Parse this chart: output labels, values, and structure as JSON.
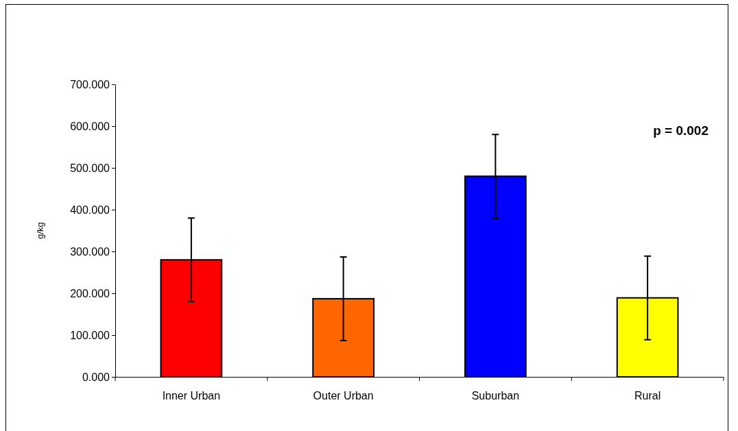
{
  "chart_data": {
    "type": "bar",
    "ylabel": "g/kg",
    "categories": [
      "Inner Urban",
      "Outer Urban",
      "Suburban",
      "Rural"
    ],
    "values": [
      280,
      187,
      480,
      189
    ],
    "colors": [
      "#ff0000",
      "#ff6600",
      "#0000ff",
      "#ffff00"
    ],
    "errors": [
      100,
      100,
      100,
      100
    ],
    "ylim": [
      0,
      700
    ],
    "yticks": [
      {
        "value": 0,
        "label": "0.000"
      },
      {
        "value": 100,
        "label": "100.000"
      },
      {
        "value": 200,
        "label": "200.000"
      },
      {
        "value": 300,
        "label": "300.000"
      },
      {
        "value": 400,
        "label": "400.000"
      },
      {
        "value": 500,
        "label": "500.000"
      },
      {
        "value": 600,
        "label": "600.000"
      },
      {
        "value": 700,
        "label": "700.000"
      }
    ],
    "annotations": [
      "p = 0.002"
    ]
  }
}
